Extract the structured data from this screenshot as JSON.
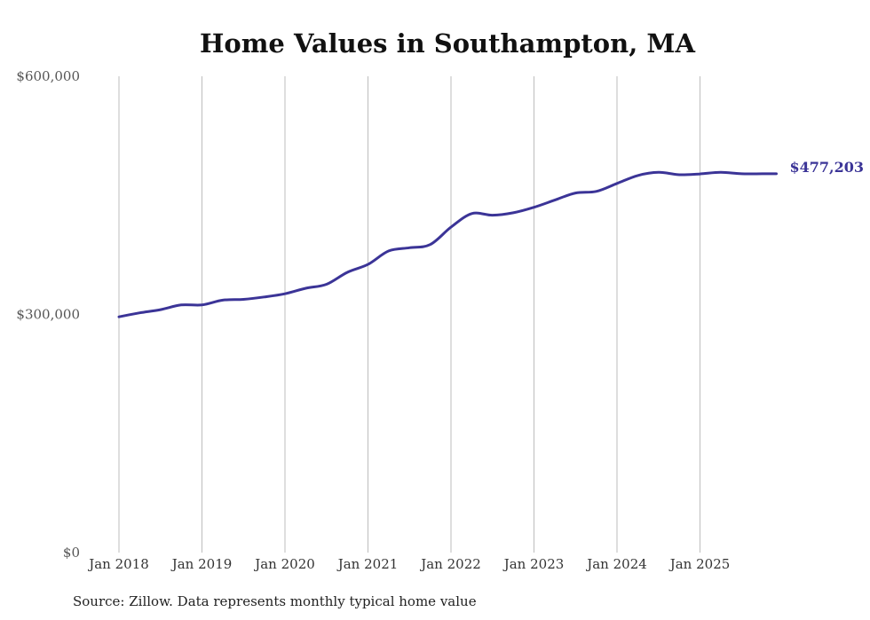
{
  "chart_data": {
    "type": "line",
    "title": "Home Values in Southampton, MA",
    "xlabel": "",
    "ylabel": "",
    "ylim": [
      0,
      600000
    ],
    "y_ticks": [
      0,
      300000,
      600000
    ],
    "y_tick_labels": [
      "$0",
      "$300,000",
      "$600,000"
    ],
    "x_range": [
      2017.9,
      2026.2
    ],
    "x_tick_values": [
      2018,
      2019,
      2020,
      2021,
      2022,
      2023,
      2024,
      2025
    ],
    "x_tick_labels": [
      "Jan 2018",
      "Jan 2019",
      "Jan 2020",
      "Jan 2021",
      "Jan 2022",
      "Jan 2023",
      "Jan 2024",
      "Jan 2025"
    ],
    "grid": "vertical",
    "series": [
      {
        "name": "Typical home value",
        "color": "#3b3497",
        "end_label": "$477,203",
        "x": [
          2018.0,
          2018.25,
          2018.5,
          2018.75,
          2019.0,
          2019.25,
          2019.5,
          2019.75,
          2020.0,
          2020.25,
          2020.5,
          2020.75,
          2021.0,
          2021.25,
          2021.5,
          2021.75,
          2022.0,
          2022.25,
          2022.5,
          2022.75,
          2023.0,
          2023.25,
          2023.5,
          2023.75,
          2024.0,
          2024.25,
          2024.5,
          2024.75,
          2025.0,
          2025.25,
          2025.5,
          2025.75,
          2025.92
        ],
        "values": [
          297000,
          302000,
          306000,
          312000,
          312000,
          318000,
          319000,
          322000,
          326000,
          333000,
          338000,
          353000,
          363000,
          380000,
          384000,
          388000,
          410000,
          427000,
          425000,
          428000,
          435000,
          444000,
          453000,
          455000,
          465000,
          475000,
          479000,
          476000,
          477000,
          479000,
          477203,
          477203,
          477203
        ]
      }
    ],
    "source": "Source: Zillow. Data represents monthly typical home value"
  }
}
